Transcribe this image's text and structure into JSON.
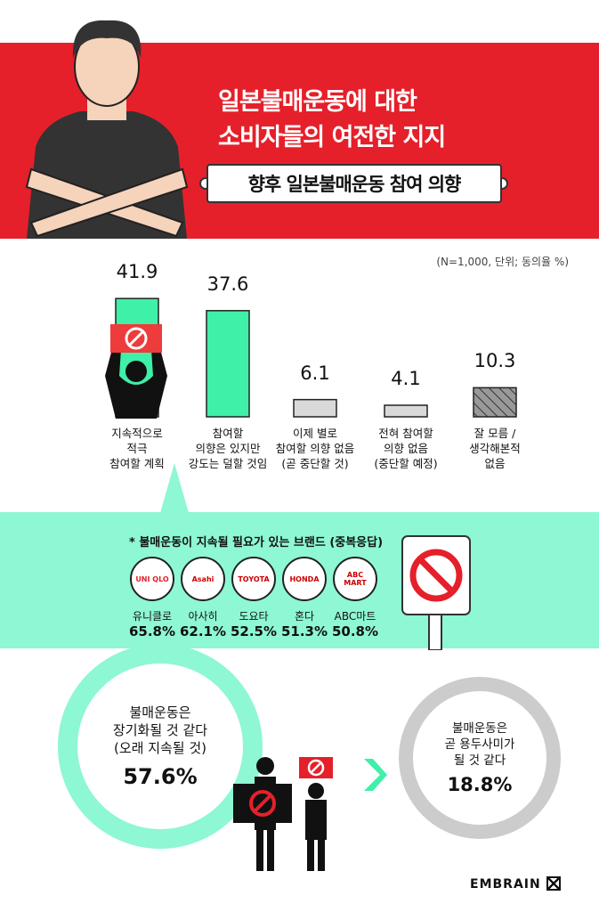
{
  "header": {
    "title_line1": "일본불매운동에 대한",
    "title_line2": "소비자들의 여전한 지지",
    "subtitle": "향후 일본불매운동 참여 의향"
  },
  "chart_data": {
    "type": "bar",
    "note": "(N=1,000, 단위; 동의율 %)",
    "categories": [
      "지속적으로\n적극\n참여할 계획",
      "참여할\n의향은 있지만\n강도는 덜할 것임",
      "이제 별로\n참여할 의향 없음\n(곧 중단할 것)",
      "전혀 참여할\n의향 없음\n(중단할 예정)",
      "잘 모름 /\n생각해본적\n없음"
    ],
    "values": [
      41.9,
      37.6,
      6.1,
      4.1,
      10.3
    ],
    "value_labels": [
      "41.9",
      "37.6",
      "6.1",
      "4.1",
      "10.3"
    ],
    "colors": [
      "#3ef0a8",
      "#3ef0a8",
      "#d9d9d9",
      "#d9d9d9",
      "hatched-gray"
    ]
  },
  "brands": {
    "title": "* 불매운동이 지속될 필요가 있는 브랜드 (중복응답)",
    "items": [
      {
        "name": "유니클로",
        "pct": "65.8%",
        "logo": "UNI QLO"
      },
      {
        "name": "아사히",
        "pct": "62.1%",
        "logo": "Asahi"
      },
      {
        "name": "도요타",
        "pct": "52.5%",
        "logo": "TOYOTA"
      },
      {
        "name": "혼다",
        "pct": "51.3%",
        "logo": "HONDA"
      },
      {
        "name": "ABC마트",
        "pct": "50.8%",
        "logo": "ABC MART"
      }
    ]
  },
  "outlook": {
    "long_text1": "불매운동은",
    "long_text2": "장기화될 것 같다",
    "long_text3": "(오래 지속될 것)",
    "long_pct": "57.6%",
    "short_text1": "불매운동은",
    "short_text2": "곧 용두사미가",
    "short_text3": "될 것 같다",
    "short_pct": "18.8%"
  },
  "footer": {
    "brand": "EMBRAIN"
  },
  "colors": {
    "red": "#e5202a",
    "mint": "#8ef7d3",
    "bar": "#3ef0a8"
  }
}
